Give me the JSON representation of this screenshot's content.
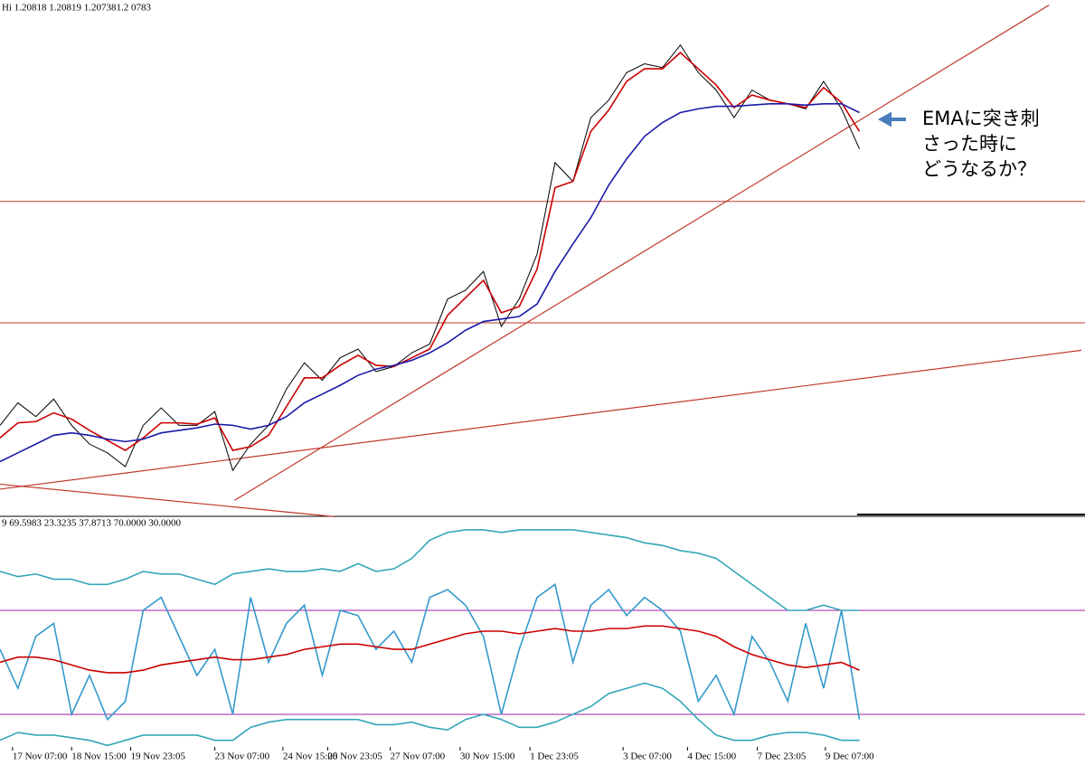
{
  "chart_data": [
    {
      "type": "line",
      "title": "Hi 1.20818 1.20819 1.207381.2 0783",
      "xlim": [
        0,
        60.6
      ],
      "ylim": [
        1.1788,
        1.22
      ],
      "series": [
        {
          "color": "#000000",
          "values": [
            1.186,
            1.1878,
            1.1867,
            1.1881,
            1.186,
            1.1845,
            1.1838,
            1.1827,
            1.186,
            1.1874,
            1.186,
            1.186,
            1.1871,
            1.1824,
            1.1845,
            1.186,
            1.1889,
            1.191,
            1.1896,
            1.1914,
            1.1921,
            1.1903,
            1.1907,
            1.1918,
            1.1925,
            1.1961,
            1.1968,
            1.1983,
            1.1939,
            1.1961,
            1.1997,
            1.207,
            1.2055,
            1.2106,
            1.212,
            1.2142,
            1.2149,
            1.2146,
            1.2164,
            1.2142,
            1.2128,
            1.2106,
            1.2128,
            1.212,
            1.2117,
            1.2113,
            1.2135,
            1.2113,
            1.2081
          ]
        },
        {
          "color": "#cc0000",
          "values": [
            1.185,
            1.1862,
            1.1863,
            1.187,
            1.1865,
            1.1856,
            1.1848,
            1.184,
            1.185,
            1.1862,
            1.1862,
            1.1861,
            1.1866,
            1.184,
            1.1843,
            1.1852,
            1.1875,
            1.1898,
            1.1898,
            1.1908,
            1.1916,
            1.1908,
            1.1907,
            1.1914,
            1.1921,
            1.1948,
            1.1962,
            1.1976,
            1.195,
            1.1955,
            1.1985,
            1.205,
            1.2055,
            1.2095,
            1.2112,
            1.2135,
            1.2145,
            1.2145,
            1.2158,
            1.2145,
            1.2132,
            1.2114,
            1.2124,
            1.212,
            1.2117,
            1.2114,
            1.213,
            1.2118,
            1.2095
          ]
        },
        {
          "color": "#1a1aa8",
          "values": [
            1.1831,
            1.1838,
            1.1845,
            1.1852,
            1.1854,
            1.1852,
            1.1849,
            1.1847,
            1.1849,
            1.1854,
            1.1856,
            1.1858,
            1.1861,
            1.186,
            1.1857,
            1.186,
            1.1867,
            1.1878,
            1.1885,
            1.1892,
            1.19,
            1.1905,
            1.1908,
            1.1912,
            1.1918,
            1.1926,
            1.1936,
            1.1943,
            1.1945,
            1.1947,
            1.1957,
            1.1983,
            1.2005,
            1.2026,
            1.2052,
            1.2073,
            1.2091,
            1.2102,
            1.211,
            1.2113,
            1.2115,
            1.2115,
            1.2116,
            1.2117,
            1.2117,
            1.2116,
            1.2117,
            1.2117,
            1.211
          ]
        }
      ],
      "hlines": [
        1.2039,
        1.1942
      ],
      "hline_color": "#c0392b",
      "trendlines": [
        {
          "x": [
            13.1,
            58.6
          ],
          "y": [
            1.18,
            1.2196
          ]
        },
        {
          "x": [
            0,
            60.4
          ],
          "y": [
            1.1809,
            1.192
          ]
        },
        {
          "x": [
            0,
            18.7
          ],
          "y": [
            1.1813,
            1.1787
          ]
        }
      ],
      "trendline_color": "#c0392b",
      "annotations": [
        "EMAに突き刺",
        "さった時に",
        "どうなるか？"
      ],
      "annotation_color": "#4a7ebb"
    },
    {
      "type": "line",
      "title": "9 69.5983 23.3235 37.8713 70.0000 30.0000",
      "xlim": [
        0,
        60.6
      ],
      "ylim": [
        17.8,
        104.8
      ],
      "series": [
        {
          "color": "#3399cc",
          "values": [
            55,
            40,
            60,
            65,
            30,
            45,
            28,
            35,
            70,
            75,
            60,
            45,
            55,
            30,
            75,
            50,
            65,
            72,
            45,
            70,
            68,
            55,
            62,
            50,
            75,
            78,
            72,
            60,
            30,
            55,
            75,
            80,
            50,
            72,
            78,
            68,
            75,
            70,
            62,
            35,
            45,
            30,
            60,
            50,
            35,
            65,
            40,
            70,
            28
          ]
        },
        {
          "color": "#cc0000",
          "values": [
            50,
            52,
            52,
            51,
            49,
            47,
            46,
            46,
            47,
            49,
            50,
            51,
            52,
            51,
            51,
            52,
            53,
            55,
            56,
            57,
            57,
            56,
            55,
            55,
            57,
            59,
            61,
            62,
            62,
            61,
            62,
            63,
            62,
            62,
            63,
            63,
            64,
            64,
            63,
            62,
            60,
            56,
            53,
            51,
            49,
            48,
            49,
            50,
            47
          ]
        },
        {
          "color": "#33a6b8",
          "values": [
            85,
            83,
            84,
            82,
            82,
            80,
            80,
            82,
            85,
            84,
            84,
            82,
            80,
            84,
            85,
            86,
            85,
            85,
            86,
            85,
            88,
            85,
            86,
            90,
            97,
            100,
            101,
            101,
            100,
            101,
            101,
            101,
            101,
            100,
            99,
            98,
            96,
            95,
            93,
            92,
            90,
            85,
            80,
            75,
            70,
            70,
            72,
            70,
            70
          ]
        },
        {
          "color": "#33a6b8",
          "values": [
            20,
            23,
            22,
            22,
            21,
            20,
            18,
            20,
            22,
            22,
            22,
            22,
            20,
            20,
            25,
            27,
            28,
            28,
            28,
            28,
            28,
            26,
            26,
            27,
            25,
            24,
            28,
            30,
            28,
            25,
            25,
            27,
            30,
            33,
            38,
            40,
            42,
            40,
            35,
            28,
            22,
            20,
            20,
            22,
            23,
            23,
            22,
            20,
            20
          ]
        }
      ],
      "hlines": [
        70,
        30
      ],
      "hline_color": "#a020a0",
      "xticks": [
        {
          "value": 0.7,
          "label": "17 Nov 07:00"
        },
        {
          "value": 4.0,
          "label": "18 Nov 15:00"
        },
        {
          "value": 7.3,
          "label": "19 Nov 23:05"
        },
        {
          "value": 12.0,
          "label": "23 Nov 07:00"
        },
        {
          "value": 15.8,
          "label": "24  Nov 15:00"
        },
        {
          "value": 18.3,
          "label": "25 Nov 23:05"
        },
        {
          "value": 21.8,
          "label": "27 Nov 07:00"
        },
        {
          "value": 25.7,
          "label": "30  Nov 15:00"
        },
        {
          "value": 29.6,
          "label": "1 Dec 23:05"
        },
        {
          "value": 34.8,
          "label": "3 Dec 07:00"
        },
        {
          "value": 38.4,
          "label": "4 Dec 15:00"
        },
        {
          "value": 42.3,
          "label": "7 Dec 23:05"
        },
        {
          "value": 46.1,
          "label": "9 Dec 07:00"
        }
      ]
    }
  ]
}
